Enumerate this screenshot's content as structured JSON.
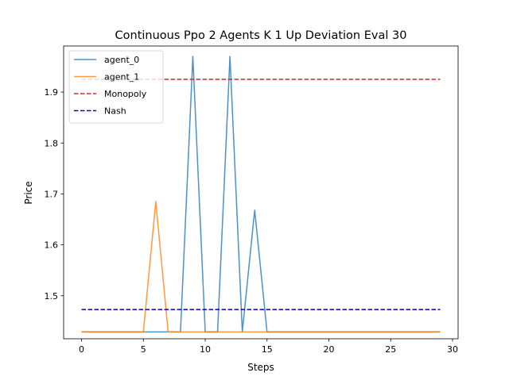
{
  "chart_data": {
    "type": "line",
    "title": "Continuous Ppo 2 Agents K 1 Up Deviation Eval 30",
    "xlabel": "Steps",
    "ylabel": "Price",
    "xlim": [
      -1.45,
      30.45
    ],
    "ylim": [
      1.4155,
      1.9905
    ],
    "xticks": [
      0,
      5,
      10,
      15,
      20,
      25,
      30
    ],
    "yticks": [
      1.5,
      1.6,
      1.7,
      1.8,
      1.9
    ],
    "xtick_labels": [
      "0",
      "5",
      "10",
      "15",
      "20",
      "25",
      "30"
    ],
    "ytick_labels": [
      "1.5",
      "1.6",
      "1.7",
      "1.8",
      "1.9"
    ],
    "grid": false,
    "legend_position": "top-left",
    "series": [
      {
        "name": "agent_0",
        "color": "#1f77b4",
        "style": "solid",
        "x": [
          0,
          1,
          2,
          3,
          4,
          5,
          6,
          7,
          8,
          9,
          10,
          11,
          12,
          13,
          14,
          15,
          16,
          17,
          18,
          19,
          20,
          21,
          22,
          23,
          24,
          25,
          26,
          27,
          28,
          29
        ],
        "values": [
          1.429,
          1.429,
          1.429,
          1.429,
          1.429,
          1.429,
          1.429,
          1.429,
          1.429,
          1.97,
          1.429,
          1.429,
          1.97,
          1.429,
          1.668,
          1.429,
          1.429,
          1.429,
          1.429,
          1.429,
          1.429,
          1.429,
          1.429,
          1.429,
          1.429,
          1.429,
          1.429,
          1.429,
          1.429,
          1.429
        ]
      },
      {
        "name": "agent_1",
        "color": "#ff7f0e",
        "style": "solid",
        "x": [
          0,
          1,
          2,
          3,
          4,
          5,
          6,
          7,
          8,
          9,
          10,
          11,
          12,
          13,
          14,
          15,
          16,
          17,
          18,
          19,
          20,
          21,
          22,
          23,
          24,
          25,
          26,
          27,
          28,
          29
        ],
        "values": [
          1.429,
          1.429,
          1.429,
          1.429,
          1.429,
          1.429,
          1.685,
          1.429,
          1.429,
          1.429,
          1.429,
          1.429,
          1.429,
          1.429,
          1.429,
          1.429,
          1.429,
          1.429,
          1.429,
          1.429,
          1.429,
          1.429,
          1.429,
          1.429,
          1.429,
          1.429,
          1.429,
          1.429,
          1.429,
          1.429
        ]
      },
      {
        "name": "Monopoly",
        "color": "#d62728",
        "style": "dashed",
        "x": [
          0,
          29
        ],
        "values": [
          1.925,
          1.925
        ]
      },
      {
        "name": "Nash",
        "color": "#0000cc",
        "style": "dashed",
        "x": [
          0,
          29
        ],
        "values": [
          1.473,
          1.473
        ]
      }
    ]
  }
}
